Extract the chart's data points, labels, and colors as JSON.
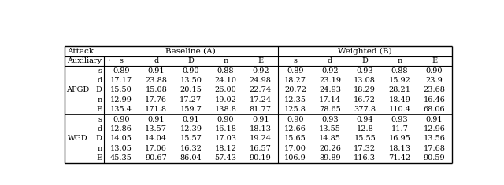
{
  "aux_labels": [
    "s",
    "d",
    "D",
    "n",
    "E"
  ],
  "apgd_baseline": [
    [
      "0.89",
      "0.91",
      "0.90",
      "0.88",
      "0.92"
    ],
    [
      "17.17",
      "23.88",
      "13.50",
      "24.10",
      "24.98"
    ],
    [
      "15.50",
      "15.08",
      "20.15",
      "26.00",
      "22.74"
    ],
    [
      "12.99",
      "17.76",
      "17.27",
      "19.02",
      "17.24"
    ],
    [
      "135.4",
      "171.8",
      "159.7",
      "138.8",
      "81.77"
    ]
  ],
  "apgd_weighted": [
    [
      "0.89",
      "0.92",
      "0.93",
      "0.88",
      "0.90"
    ],
    [
      "18.27",
      "23.19",
      "13.08",
      "15.92",
      "23.9"
    ],
    [
      "20.72",
      "24.93",
      "18.29",
      "28.21",
      "23.68"
    ],
    [
      "12.35",
      "17.14",
      "16.72",
      "18.49",
      "16.46"
    ],
    [
      "125.8",
      "78.65",
      "377.8",
      "110.4",
      "68.06"
    ]
  ],
  "wgd_baseline": [
    [
      "0.90",
      "0.91",
      "0.91",
      "0.90",
      "0.91"
    ],
    [
      "12.86",
      "13.57",
      "12.39",
      "16.18",
      "18.13"
    ],
    [
      "14.05",
      "14.04",
      "15.57",
      "17.03",
      "19.24"
    ],
    [
      "13.05",
      "17.06",
      "16.32",
      "18.12",
      "16.57"
    ],
    [
      "45.35",
      "90.67",
      "86.04",
      "57.43",
      "90.19"
    ]
  ],
  "wgd_weighted": [
    [
      "0.90",
      "0.93",
      "0.94",
      "0.93",
      "0.91"
    ],
    [
      "12.66",
      "13.55",
      "12.8",
      "11.7",
      "12.96"
    ],
    [
      "15.65",
      "14.85",
      "15.55",
      "16.95",
      "13.56"
    ],
    [
      "17.00",
      "20.26",
      "17.32",
      "18.13",
      "17.68"
    ],
    [
      "106.9",
      "89.89",
      "116.3",
      "71.42",
      "90.59"
    ]
  ],
  "bg_color": "#ffffff",
  "text_color": "#000000",
  "font_size": 7.0,
  "header_font_size": 7.5
}
